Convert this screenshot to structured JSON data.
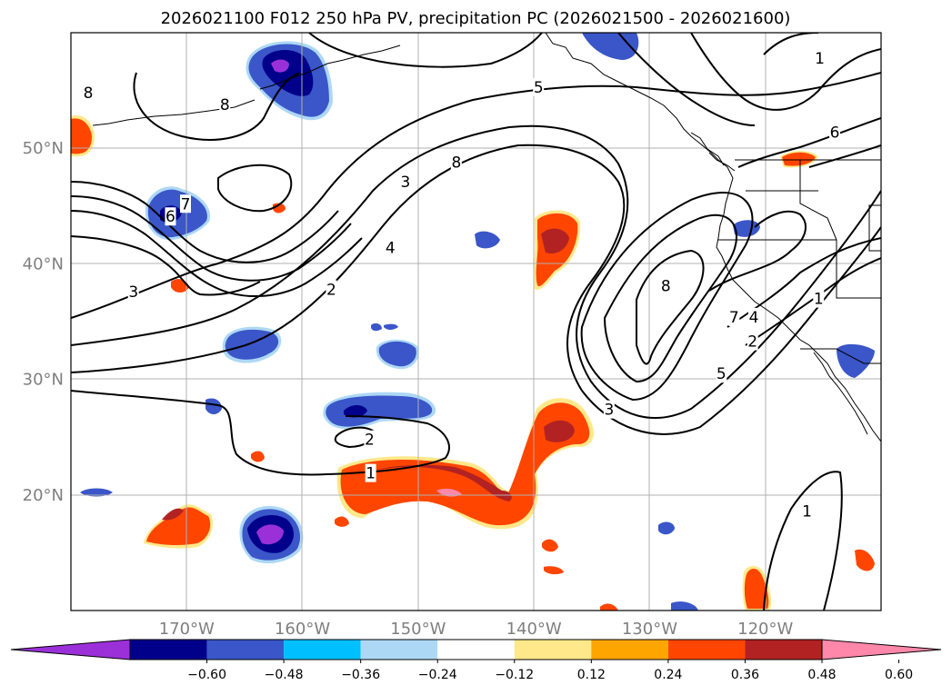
{
  "title": "2026021100 F012 250 hPa PV, precipitation PC (2026021500 - 2026021600)",
  "map": {
    "lon_range": [
      -180,
      -110
    ],
    "lat_range": [
      10,
      60
    ],
    "lat_ticks": [
      {
        "value": 20,
        "label": "20°N"
      },
      {
        "value": 30,
        "label": "30°N"
      },
      {
        "value": 40,
        "label": "40°N"
      },
      {
        "value": 50,
        "label": "50°N"
      }
    ],
    "lon_ticks": [
      {
        "value": -170,
        "label": "170°W"
      },
      {
        "value": -160,
        "label": "160°W"
      },
      {
        "value": -150,
        "label": "150°W"
      },
      {
        "value": -140,
        "label": "140°W"
      },
      {
        "value": -130,
        "label": "130°W"
      },
      {
        "value": -120,
        "label": "120°W"
      }
    ],
    "grid": true,
    "contour_labels": [
      {
        "text": "8",
        "lon": -178.5,
        "lat": 54.8
      },
      {
        "text": "8",
        "lon": -166.7,
        "lat": 53.8
      },
      {
        "text": "1",
        "lon": -115.3,
        "lat": 57.8
      },
      {
        "text": "5",
        "lon": -139.6,
        "lat": 55.3
      },
      {
        "text": "6",
        "lon": -114.0,
        "lat": 51.4
      },
      {
        "text": "8",
        "lon": -146.7,
        "lat": 48.8
      },
      {
        "text": "3",
        "lon": -151.1,
        "lat": 47.1
      },
      {
        "text": "7",
        "lon": -170.1,
        "lat": 45.2
      },
      {
        "text": "6",
        "lon": -171.4,
        "lat": 44.1
      },
      {
        "text": "4",
        "lon": -152.4,
        "lat": 41.4
      },
      {
        "text": "3",
        "lon": -174.6,
        "lat": 37.6
      },
      {
        "text": "2",
        "lon": -157.5,
        "lat": 37.8
      },
      {
        "text": "8",
        "lon": -128.6,
        "lat": 38.1
      },
      {
        "text": "7",
        "lon": -122.7,
        "lat": 35.4
      },
      {
        "text": "4",
        "lon": -121.0,
        "lat": 35.4
      },
      {
        "text": "2",
        "lon": -121.1,
        "lat": 33.3
      },
      {
        "text": "1",
        "lon": -115.4,
        "lat": 37.0
      },
      {
        "text": "5",
        "lon": -123.8,
        "lat": 30.5
      },
      {
        "text": "3",
        "lon": -133.5,
        "lat": 27.4
      },
      {
        "text": "2",
        "lon": -154.2,
        "lat": 24.8
      },
      {
        "text": "1",
        "lon": -154.1,
        "lat": 21.9
      },
      {
        "text": "1",
        "lon": -116.4,
        "lat": 18.6
      }
    ]
  },
  "colorbar": {
    "ticks": [
      "−0.60",
      "−0.48",
      "−0.36",
      "−0.24",
      "−0.12",
      "0.12",
      "0.24",
      "0.36",
      "0.48",
      "0.60"
    ],
    "colors": [
      "#9b30d9",
      "#00008b",
      "#3a56c8",
      "#00bfff",
      "#add8f5",
      "#ffffff",
      "#ffe88a",
      "#ffa500",
      "#ff4500",
      "#b22222",
      "#ff88aa"
    ]
  },
  "legend_colors": {
    "contour": "#000000",
    "grid": "#b0b0b0",
    "coast": "#000000"
  }
}
